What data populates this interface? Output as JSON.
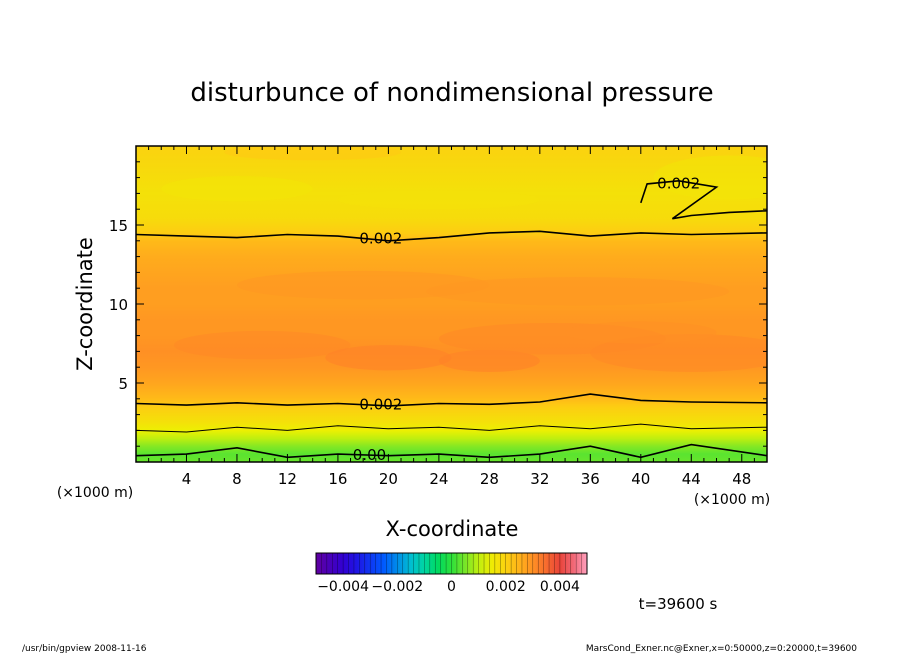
{
  "chart_data": {
    "type": "heatmap",
    "title": "disturbunce of nondimensional pressure",
    "xlabel": "X-coordinate",
    "ylabel": "Z-coordinate",
    "x_unit": "(×1000 m)",
    "y_unit": "(×1000 m)",
    "xlim": [
      0,
      50
    ],
    "ylim": [
      0,
      20
    ],
    "x_ticks": [
      4,
      8,
      12,
      16,
      20,
      24,
      28,
      32,
      36,
      40,
      44,
      48
    ],
    "y_ticks": [
      5,
      10,
      15
    ],
    "x_tick_labels": [
      "4",
      "8",
      "12",
      "16",
      "20",
      "24",
      "28",
      "32",
      "36",
      "40",
      "44",
      "48"
    ],
    "y_tick_labels": [
      "5",
      "10",
      "15"
    ],
    "grid": false,
    "colorbar": {
      "range": [
        -0.005,
        0.005
      ],
      "tick_labels": [
        "−0.004",
        "−0.002",
        "0",
        "0.002",
        "0.004"
      ],
      "tick_values": [
        -0.004,
        -0.002,
        0,
        0.002,
        0.004
      ]
    },
    "field_profile": {
      "z": [
        0,
        0.5,
        1.0,
        1.5,
        2.0,
        2.5,
        3.0,
        3.5,
        4.0,
        5.0,
        6.0,
        7.0,
        8.0,
        9.0,
        10.0,
        11.0,
        12.0,
        13.0,
        14.0,
        14.5,
        15.5,
        17.0,
        18.0,
        19.0,
        20.0
      ],
      "value": [
        0.0004,
        0.0003,
        0.0006,
        0.001,
        0.0014,
        0.0017,
        0.0019,
        0.0021,
        0.0024,
        0.0027,
        0.0029,
        0.003,
        0.0029,
        0.0029,
        0.0028,
        0.0028,
        0.0027,
        0.0026,
        0.0024,
        0.0021,
        0.0018,
        0.0017,
        0.0018,
        0.0019,
        0.002
      ]
    },
    "contours": [
      {
        "label": "0.002",
        "z": [
          3.7,
          3.6,
          3.75,
          3.6,
          3.7,
          3.55,
          3.7,
          3.65,
          3.8,
          4.3,
          3.9,
          3.8,
          3.75
        ],
        "x": [
          0,
          4,
          8,
          12,
          16,
          20,
          24,
          28,
          32,
          36,
          40,
          44,
          50
        ]
      },
      {
        "label": "",
        "z": [
          2.0,
          1.9,
          2.2,
          2.0,
          2.3,
          2.1,
          2.2,
          2.0,
          2.3,
          2.1,
          2.4,
          2.1,
          2.2
        ],
        "x": [
          0,
          4,
          8,
          12,
          16,
          20,
          24,
          28,
          32,
          36,
          40,
          44,
          50
        ]
      },
      {
        "label": "0.00",
        "z": [
          0.4,
          0.5,
          0.9,
          0.3,
          0.5,
          0.4,
          0.5,
          0.3,
          0.5,
          1.0,
          0.3,
          1.1,
          0.4
        ],
        "x": [
          0,
          4,
          8,
          12,
          16,
          20,
          24,
          28,
          32,
          36,
          40,
          44,
          50
        ]
      },
      {
        "label": "0.002",
        "z": [
          14.4,
          14.3,
          14.2,
          14.4,
          14.3,
          14.0,
          14.2,
          14.5,
          14.6,
          14.3,
          14.5,
          14.4,
          14.5
        ],
        "x": [
          0,
          4,
          8,
          12,
          16,
          20,
          24,
          28,
          32,
          36,
          40,
          44,
          50
        ]
      },
      {
        "label": "0.002",
        "z": [
          16.4,
          17.6,
          17.8,
          17.4,
          15.4,
          15.6,
          15.8,
          15.9
        ],
        "x": [
          40,
          40.5,
          43,
          46,
          42.5,
          44,
          47,
          50
        ]
      }
    ],
    "annotation": "t=39600 s"
  },
  "footer": {
    "left": "/usr/bin/gpview   2008-11-16",
    "right": "MarsCond_Exner.nc@Exner,x=0:50000,z=0:20000,t=39600"
  }
}
